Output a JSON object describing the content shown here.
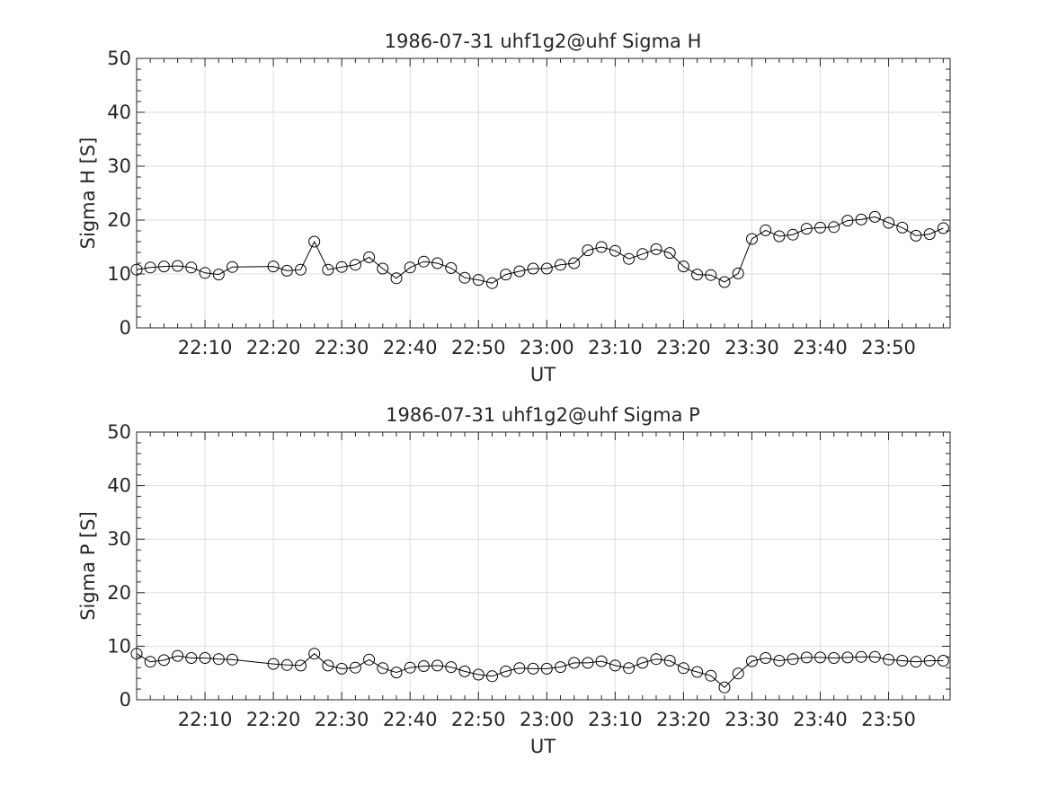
{
  "chart_data": [
    {
      "type": "line",
      "title": "1986-07-31  uhf1g2@uhf Sigma H",
      "xlabel": "UT",
      "ylabel": "Sigma H [S]",
      "ylim": [
        0,
        50
      ],
      "yticks": [
        "0",
        "10",
        "20",
        "30",
        "40",
        "50"
      ],
      "xlim": [
        "22:00",
        "23:59"
      ],
      "xticks": [
        "22:10",
        "22:20",
        "22:30",
        "22:40",
        "22:50",
        "23:00",
        "23:10",
        "23:20",
        "23:30",
        "23:40",
        "23:50"
      ],
      "grid": true,
      "marker": "open-circle",
      "line_color": "#000000",
      "series": [
        {
          "x": [
            "22:00",
            "22:02",
            "22:04",
            "22:06",
            "22:08",
            "22:10",
            "22:12",
            "22:14",
            "22:20",
            "22:22",
            "22:24",
            "22:26",
            "22:28",
            "22:30",
            "22:32",
            "22:34",
            "22:36",
            "22:38",
            "22:40",
            "22:42",
            "22:44",
            "22:46",
            "22:48",
            "22:50",
            "22:52",
            "22:54",
            "22:56",
            "22:58",
            "23:00",
            "23:02",
            "23:04",
            "23:06",
            "23:08",
            "23:10",
            "23:12",
            "23:14",
            "23:16",
            "23:18",
            "23:20",
            "23:22",
            "23:24",
            "23:26",
            "23:28",
            "23:30",
            "23:32",
            "23:34",
            "23:36",
            "23:38",
            "23:40",
            "23:42",
            "23:44",
            "23:46",
            "23:48",
            "23:50",
            "23:52",
            "23:54",
            "23:56",
            "23:58"
          ],
          "y": [
            10.8,
            11.2,
            11.4,
            11.5,
            11.2,
            10.2,
            9.9,
            11.3,
            11.4,
            10.6,
            10.8,
            16.0,
            10.8,
            11.3,
            11.7,
            13.1,
            11.0,
            9.2,
            11.2,
            12.3,
            12.0,
            11.1,
            9.3,
            8.9,
            8.3,
            9.9,
            10.5,
            11.0,
            11.0,
            11.7,
            12.0,
            14.4,
            15.0,
            14.3,
            12.8,
            13.7,
            14.6,
            13.9,
            11.4,
            9.9,
            9.8,
            8.5,
            10.1,
            16.5,
            18.1,
            17.0,
            17.3,
            18.4,
            18.6,
            18.7,
            19.9,
            20.1,
            20.6,
            19.5,
            18.6,
            17.1,
            17.4,
            18.5
          ]
        }
      ]
    },
    {
      "type": "line",
      "title": "1986-07-31  uhf1g2@uhf Sigma P",
      "xlabel": "UT",
      "ylabel": "Sigma P [S]",
      "ylim": [
        0,
        50
      ],
      "yticks": [
        "0",
        "10",
        "20",
        "30",
        "40",
        "50"
      ],
      "xlim": [
        "22:00",
        "23:59"
      ],
      "xticks": [
        "22:10",
        "22:20",
        "22:30",
        "22:40",
        "22:50",
        "23:00",
        "23:10",
        "23:20",
        "23:30",
        "23:40",
        "23:50"
      ],
      "grid": true,
      "marker": "open-circle",
      "line_color": "#000000",
      "series": [
        {
          "x": [
            "22:00",
            "22:02",
            "22:04",
            "22:06",
            "22:08",
            "22:10",
            "22:12",
            "22:14",
            "22:20",
            "22:22",
            "22:24",
            "22:26",
            "22:28",
            "22:30",
            "22:32",
            "22:34",
            "22:36",
            "22:38",
            "22:40",
            "22:42",
            "22:44",
            "22:46",
            "22:48",
            "22:50",
            "22:52",
            "22:54",
            "22:56",
            "22:58",
            "23:00",
            "23:02",
            "23:04",
            "23:06",
            "23:08",
            "23:10",
            "23:12",
            "23:14",
            "23:16",
            "23:18",
            "23:20",
            "23:22",
            "23:24",
            "23:26",
            "23:28",
            "23:30",
            "23:32",
            "23:34",
            "23:36",
            "23:38",
            "23:40",
            "23:42",
            "23:44",
            "23:46",
            "23:48",
            "23:50",
            "23:52",
            "23:54",
            "23:56",
            "23:58"
          ],
          "y": [
            8.6,
            7.1,
            7.4,
            8.2,
            7.8,
            7.8,
            7.6,
            7.5,
            6.7,
            6.5,
            6.4,
            8.6,
            6.4,
            5.8,
            6.0,
            7.5,
            5.9,
            5.1,
            6.0,
            6.3,
            6.4,
            6.1,
            5.3,
            4.7,
            4.4,
            5.3,
            5.9,
            5.8,
            5.8,
            6.1,
            6.9,
            6.9,
            7.2,
            6.4,
            5.9,
            6.9,
            7.6,
            7.3,
            5.9,
            5.2,
            4.5,
            2.3,
            4.9,
            7.2,
            7.8,
            7.3,
            7.6,
            7.9,
            7.9,
            7.8,
            7.9,
            8.0,
            8.0,
            7.5,
            7.3,
            7.1,
            7.3,
            7.3
          ]
        }
      ]
    }
  ]
}
